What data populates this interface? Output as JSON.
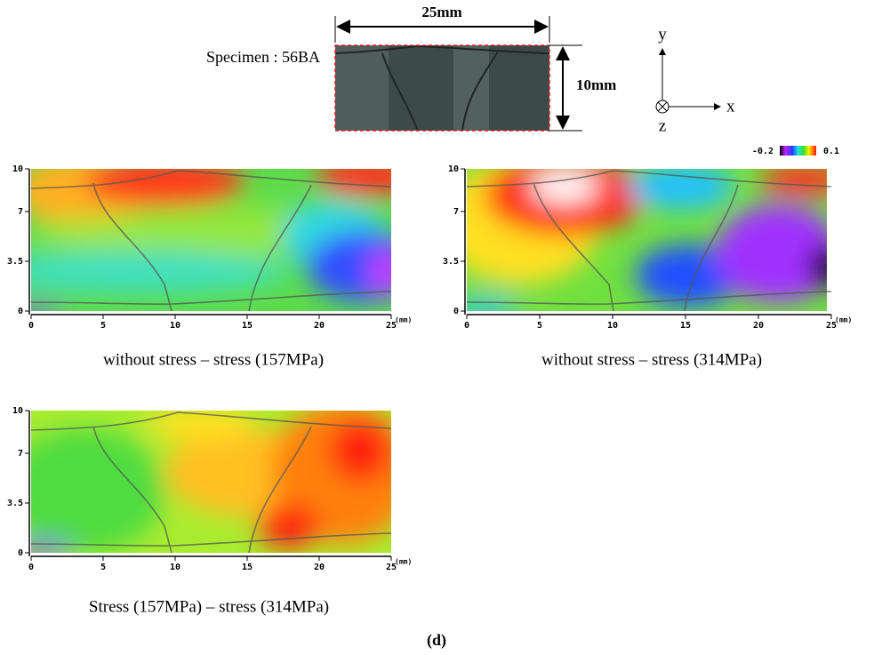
{
  "specimen": {
    "label": "Specimen : 56BA",
    "width_label": "25mm",
    "height_label": "10mm",
    "axis_labels": {
      "y": "y",
      "x": "x",
      "z": "z"
    }
  },
  "colorbar": {
    "min": -0.2,
    "max": 0.1
  },
  "maps": [
    {
      "caption": "without stress – stress (157MPa)",
      "xlim": [
        0,
        25
      ],
      "ylim": [
        0,
        10
      ],
      "xticks": [
        0,
        5,
        10,
        15,
        20,
        25
      ],
      "yticks": [
        0,
        3.5,
        7,
        10
      ],
      "xunit": "(mm)"
    },
    {
      "caption": "without stress – stress (314MPa)",
      "xlim": [
        0,
        25
      ],
      "ylim": [
        0,
        10
      ],
      "xticks": [
        0,
        5,
        10,
        15,
        20,
        25
      ],
      "yticks": [
        0,
        3.5,
        7,
        10
      ],
      "xunit": "(mm)"
    },
    {
      "caption": "Stress (157MPa) – stress (314MPa)",
      "xlim": [
        0,
        25
      ],
      "ylim": [
        0,
        10
      ],
      "xticks": [
        0,
        5,
        10,
        15,
        20,
        25
      ],
      "yticks": [
        0,
        3.5,
        7,
        10
      ],
      "xunit": "(mm)"
    }
  ],
  "figure_label": "(d)"
}
